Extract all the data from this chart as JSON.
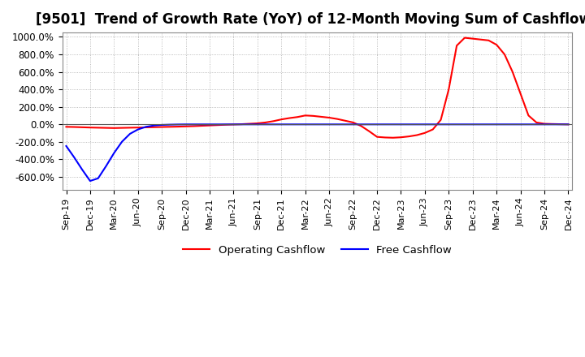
{
  "title": "[9501]  Trend of Growth Rate (YoY) of 12-Month Moving Sum of Cashflows",
  "title_fontsize": 12,
  "ylim": [
    -750,
    1050
  ],
  "yticks": [
    -600,
    -400,
    -200,
    0,
    200,
    400,
    600,
    800,
    1000
  ],
  "ytick_labels": [
    "-600.0%",
    "-400.0%",
    "-200.0%",
    "0.0%",
    "200.0%",
    "400.0%",
    "600.0%",
    "800.0%",
    "1000.0%"
  ],
  "background_color": "#ffffff",
  "plot_bg_color": "#ffffff",
  "grid_color": "#aaaaaa",
  "operating_color": "#ff0000",
  "free_color": "#0000ff",
  "legend_labels": [
    "Operating Cashflow",
    "Free Cashflow"
  ],
  "operating_cashflow": [
    -30,
    -32,
    -35,
    -38,
    -40,
    -42,
    -44,
    -42,
    -40,
    -38,
    -36,
    -34,
    -32,
    -30,
    -28,
    -25,
    -22,
    -18,
    -14,
    -10,
    -6,
    -3,
    0,
    5,
    10,
    20,
    35,
    55,
    70,
    82,
    100,
    95,
    85,
    75,
    60,
    40,
    20,
    -20,
    -80,
    -145,
    -152,
    -155,
    -150,
    -140,
    -125,
    -100,
    -60,
    50,
    400,
    900,
    990,
    980,
    970,
    960,
    910,
    800,
    600,
    350,
    100,
    20,
    5,
    2,
    0,
    -2
  ],
  "free_cashflow": [
    -250,
    -380,
    -520,
    -650,
    -620,
    -480,
    -330,
    -200,
    -110,
    -60,
    -30,
    -15,
    -8,
    -5,
    -3,
    -2,
    -2,
    -2,
    -2,
    -2,
    -2,
    -2,
    -2,
    -2,
    -2,
    -2,
    -2,
    -2,
    -2,
    -2,
    -2,
    -2,
    -2,
    -2,
    -2,
    -2,
    -2,
    -2,
    -2,
    -2,
    -2,
    -2,
    -2,
    -2,
    -2,
    -2,
    -2,
    -2,
    -2,
    -2,
    -2,
    -2,
    -2,
    -2,
    -2,
    -2,
    -2,
    -2,
    -2,
    -2,
    -2,
    -2,
    -2,
    -2
  ],
  "xtick_positions": [
    0,
    3,
    6,
    9,
    12,
    15,
    18,
    21,
    24,
    27,
    30,
    33,
    36,
    39,
    42,
    45,
    48,
    51,
    54,
    57,
    60,
    63
  ],
  "xtick_labels": [
    "Sep-19",
    "Dec-19",
    "Mar-20",
    "Jun-20",
    "Sep-20",
    "Dec-20",
    "Mar-21",
    "Jun-21",
    "Sep-21",
    "Dec-21",
    "Mar-22",
    "Jun-22",
    "Sep-22",
    "Dec-22",
    "Mar-23",
    "Jun-23",
    "Sep-23",
    "Dec-23",
    "Mar-24",
    "Jun-24",
    "Sep-24",
    "Dec-24"
  ]
}
